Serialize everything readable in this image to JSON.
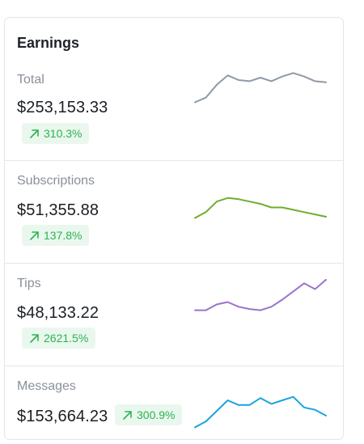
{
  "card": {
    "title": "Earnings"
  },
  "icons": {
    "trend": "arrow-up-right-icon"
  },
  "colors": {
    "badge_bg": "#eaf7ee",
    "badge_text": "#2bb44f"
  },
  "metrics": [
    {
      "label": "Total",
      "value": "$253,153.33",
      "change": "310.3%",
      "color": "#8e9aa6",
      "points": [
        10,
        14,
        25,
        33,
        29,
        28,
        31,
        28,
        32,
        35,
        32,
        28,
        27
      ]
    },
    {
      "label": "Subscriptions",
      "value": "$51,355.88",
      "change": "137.8%",
      "color": "#6fae2e",
      "points": [
        10,
        15,
        24,
        27,
        26,
        24,
        22,
        19,
        19,
        17,
        15,
        13,
        11
      ]
    },
    {
      "label": "Tips",
      "value": "$48,133.22",
      "change": "2621.5%",
      "color": "#9a72cf",
      "points": [
        12,
        12,
        17,
        19,
        15,
        13,
        12,
        15,
        21,
        28,
        35,
        30,
        38
      ]
    },
    {
      "label": "Messages",
      "value": "$153,664.23",
      "change": "300.9%",
      "color": "#1ca3dc",
      "points": [
        8,
        13,
        22,
        31,
        27,
        27,
        33,
        28,
        31,
        34,
        25,
        23,
        18
      ]
    }
  ]
}
